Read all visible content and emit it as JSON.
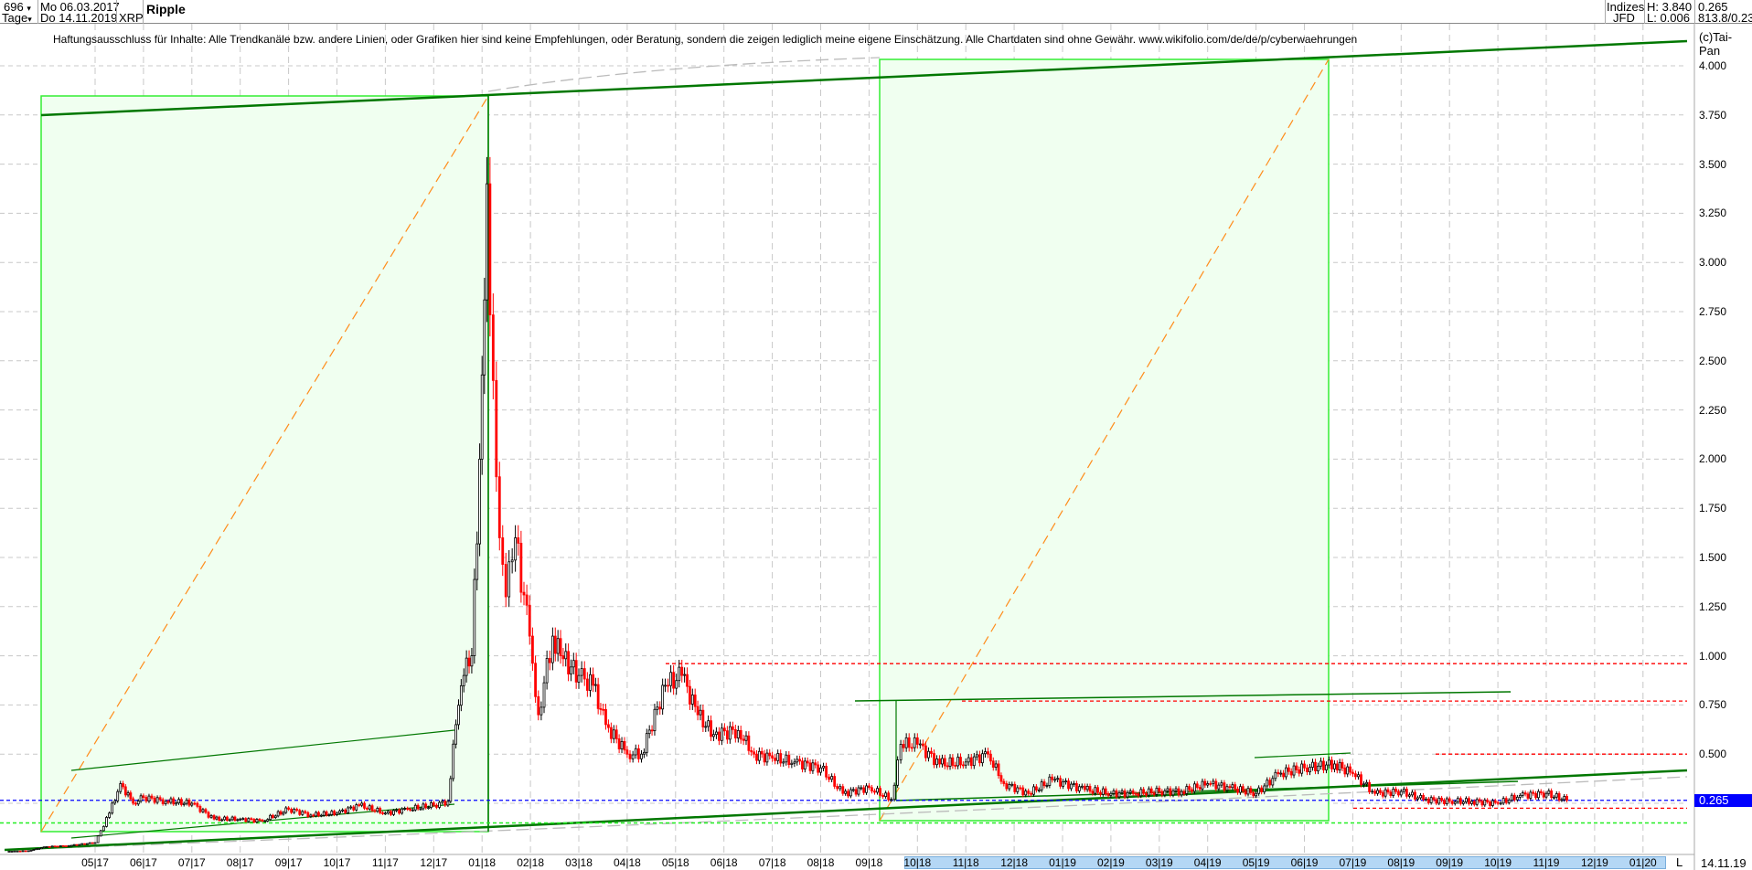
{
  "header": {
    "bars": "696",
    "bars_arrow": "▾",
    "start_date": "Mo 06.03.2017",
    "period": "Tage",
    "period_arrow": "▾",
    "end_date": "Do 14.11.2019",
    "symbol": "XRP",
    "title": "Ripple",
    "index_label": "Indizes",
    "source": "JFD",
    "high": "H: 3.840",
    "low": "L: 0.006",
    "last": "0.265",
    "extra": "813.8/0.23"
  },
  "disclaimer": "Haftungsausschluss für Inhalte: Alle Trendkanäle bzw. andere Linien, oder Grafiken hier sind keine Empfehlungen, oder Beratung, sondern die zeigen lediglich meine eigene Einschätzung. Alle Chartdaten sind ohne Gewähr.  www.wikifolio.com/de/de/p/cyberwaehrungen",
  "copyright": "(c)Tai-Pan",
  "current_price_label": "0.265",
  "axis_mode": "L",
  "last_date": "14.11.19",
  "colors": {
    "up": "#000000",
    "down": "#ff0000",
    "box_fill": "#f0fff0",
    "box_border": "#33ee33",
    "trend": "#007700",
    "current": "#0000ff",
    "resistance": "#ff0000"
  },
  "chart_data": {
    "type": "line",
    "ylim": [
      0,
      4.0
    ],
    "yticks": [
      "0.500",
      "0.750",
      "1.000",
      "1.250",
      "1.500",
      "1.750",
      "2.000",
      "2.250",
      "2.500",
      "2.750",
      "3.000",
      "3.250",
      "3.500",
      "3.750",
      "4.000"
    ],
    "xticks": [
      "05|17",
      "06|17",
      "07|17",
      "08|17",
      "09|17",
      "10|17",
      "11|17",
      "12|17",
      "01|18",
      "02|18",
      "03|18",
      "04|18",
      "05|18",
      "06|18",
      "07|18",
      "08|18",
      "09|18",
      "10|18",
      "11|18",
      "12|18",
      "01|19",
      "02|19",
      "03|19",
      "04|19",
      "05|19",
      "06|19",
      "07|19",
      "08|19",
      "09|19",
      "10|19",
      "11|19",
      "12|19",
      "01|20"
    ],
    "grid": true,
    "horizontal_levels": {
      "resistance": [
        0.96,
        0.77,
        0.5,
        0.225
      ],
      "current": 0.265,
      "support": 0.15
    },
    "x": [
      "2017-03-06",
      "2017-03-20",
      "2017-04-01",
      "2017-04-15",
      "2017-05-01",
      "2017-05-10",
      "2017-05-17",
      "2017-05-25",
      "2017-06-01",
      "2017-06-15",
      "2017-07-01",
      "2017-07-15",
      "2017-08-01",
      "2017-08-15",
      "2017-09-01",
      "2017-09-15",
      "2017-10-01",
      "2017-10-15",
      "2017-11-01",
      "2017-11-15",
      "2017-12-01",
      "2017-12-10",
      "2017-12-15",
      "2017-12-20",
      "2017-12-25",
      "2017-12-30",
      "2018-01-04",
      "2018-01-08",
      "2018-01-12",
      "2018-01-16",
      "2018-01-22",
      "2018-01-31",
      "2018-02-06",
      "2018-02-15",
      "2018-02-20",
      "2018-03-01",
      "2018-03-10",
      "2018-03-18",
      "2018-04-01",
      "2018-04-10",
      "2018-04-25",
      "2018-05-05",
      "2018-05-15",
      "2018-05-25",
      "2018-06-10",
      "2018-06-20",
      "2018-07-01",
      "2018-07-15",
      "2018-08-01",
      "2018-08-15",
      "2018-09-01",
      "2018-09-15",
      "2018-09-21",
      "2018-10-01",
      "2018-10-15",
      "2018-11-01",
      "2018-11-15",
      "2018-11-25",
      "2018-12-10",
      "2018-12-25",
      "2019-01-15",
      "2019-02-01",
      "2019-02-15",
      "2019-03-01",
      "2019-03-15",
      "2019-04-01",
      "2019-04-15",
      "2019-05-01",
      "2019-05-15",
      "2019-06-01",
      "2019-06-20",
      "2019-07-01",
      "2019-07-15",
      "2019-08-01",
      "2019-08-15",
      "2019-09-01",
      "2019-09-15",
      "2019-10-01",
      "2019-10-15",
      "2019-11-01",
      "2019-11-14"
    ],
    "close": [
      0.006,
      0.009,
      0.03,
      0.035,
      0.05,
      0.2,
      0.35,
      0.25,
      0.28,
      0.26,
      0.25,
      0.17,
      0.17,
      0.16,
      0.22,
      0.19,
      0.2,
      0.24,
      0.2,
      0.22,
      0.24,
      0.26,
      0.65,
      0.9,
      1.0,
      2.0,
      3.4,
      2.4,
      1.6,
      1.3,
      1.6,
      1.1,
      0.7,
      1.1,
      1.0,
      0.9,
      0.85,
      0.65,
      0.5,
      0.5,
      0.85,
      0.9,
      0.7,
      0.6,
      0.62,
      0.5,
      0.48,
      0.46,
      0.43,
      0.3,
      0.33,
      0.27,
      0.55,
      0.55,
      0.45,
      0.46,
      0.5,
      0.35,
      0.3,
      0.37,
      0.32,
      0.3,
      0.3,
      0.31,
      0.31,
      0.35,
      0.33,
      0.3,
      0.4,
      0.43,
      0.45,
      0.4,
      0.3,
      0.31,
      0.27,
      0.26,
      0.26,
      0.25,
      0.29,
      0.3,
      0.265
    ]
  }
}
